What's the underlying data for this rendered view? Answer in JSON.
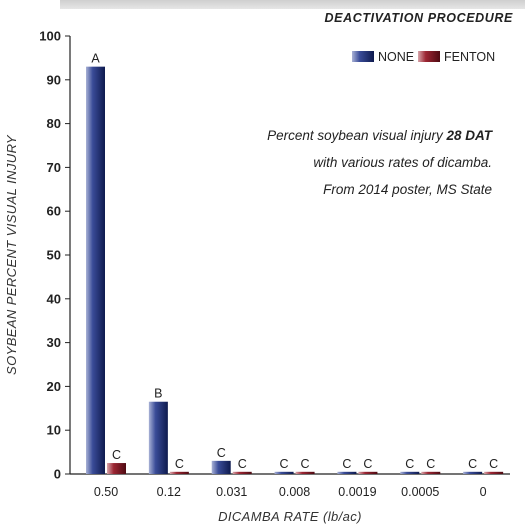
{
  "header": {
    "title": "DEACTIVATION PROCEDURE"
  },
  "chart_data": {
    "type": "bar",
    "categories": [
      "0.50",
      "0.12",
      "0.031",
      "0.008",
      "0.0019",
      "0.0005",
      "0"
    ],
    "series": [
      {
        "name": "NONE",
        "color": "#1c2e6e",
        "values": [
          93,
          16.5,
          3,
          0.5,
          0.5,
          0.5,
          0.5
        ],
        "labels": [
          "A",
          "B",
          "C",
          "C",
          "C",
          "C",
          "C"
        ]
      },
      {
        "name": "FENTON",
        "color": "#7a1420",
        "values": [
          2.5,
          0.5,
          0.5,
          0.5,
          0.5,
          0.5,
          0.5
        ],
        "labels": [
          "C",
          "C",
          "C",
          "C",
          "C",
          "C",
          "C"
        ]
      }
    ],
    "xlabel": "DICAMBA RATE (lb/ac)",
    "ylabel": "SOYBEAN PERCENT VISUAL INJURY",
    "ylim": [
      0,
      100
    ],
    "yticks": [
      0,
      10,
      20,
      30,
      40,
      50,
      60,
      70,
      80,
      90,
      100
    ],
    "grid": false,
    "legend": "top-right",
    "annotation": {
      "line1_pre": "Percent soybean visual injury ",
      "line1_bold": "28 DAT",
      "line2": "with various rates of dicamba.",
      "line3": "From 2014 poster, MS State"
    }
  }
}
